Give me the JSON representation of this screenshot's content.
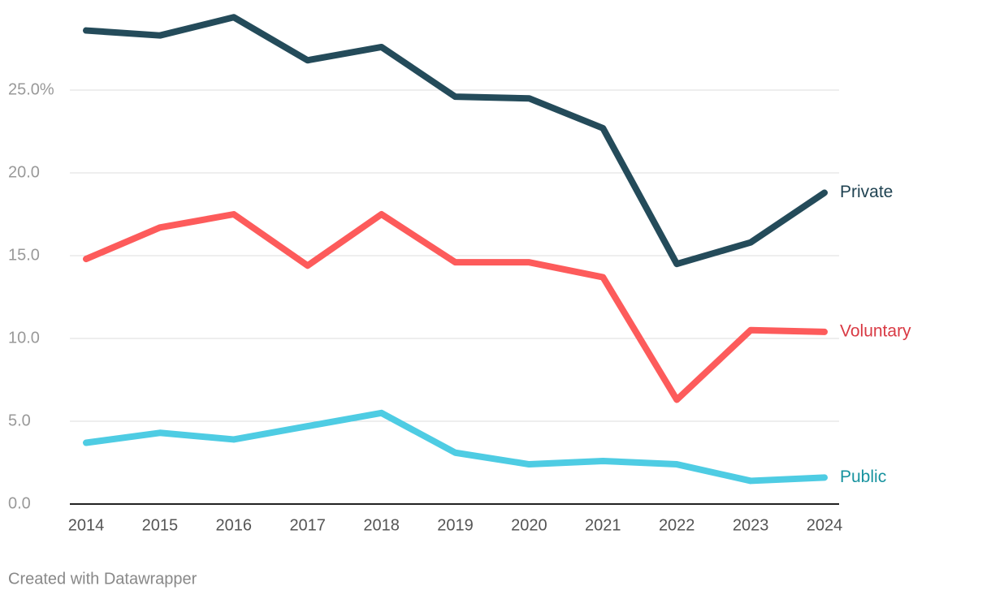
{
  "chart_data": {
    "type": "line",
    "categories": [
      "2014",
      "2015",
      "2016",
      "2017",
      "2018",
      "2019",
      "2020",
      "2021",
      "2022",
      "2023",
      "2024"
    ],
    "series": [
      {
        "name": "Private",
        "color": "#244b5a",
        "label_color": "#1f4251",
        "values": [
          28.6,
          28.3,
          29.4,
          26.8,
          27.6,
          24.6,
          24.5,
          22.7,
          14.5,
          15.8,
          18.8
        ]
      },
      {
        "name": "Voluntary",
        "color": "#fd5b5b",
        "label_color": "#d93a44",
        "values": [
          14.8,
          16.7,
          17.5,
          14.4,
          17.5,
          14.6,
          14.6,
          13.7,
          6.3,
          10.5,
          10.4
        ]
      },
      {
        "name": "Public",
        "color": "#4ecce3",
        "label_color": "#17939f",
        "values": [
          3.7,
          4.3,
          3.9,
          4.7,
          5.5,
          3.1,
          2.4,
          2.6,
          2.4,
          1.4,
          1.6
        ]
      }
    ],
    "ylim": [
      0,
      30
    ],
    "yticks": [
      {
        "value": 0,
        "label": "0.0"
      },
      {
        "value": 5,
        "label": "5.0"
      },
      {
        "value": 10,
        "label": "10.0"
      },
      {
        "value": 15,
        "label": "15.0"
      },
      {
        "value": 20,
        "label": "20.0"
      },
      {
        "value": 25,
        "label": "25.0%"
      }
    ],
    "grid": true,
    "credit": "Created with Datawrapper"
  }
}
